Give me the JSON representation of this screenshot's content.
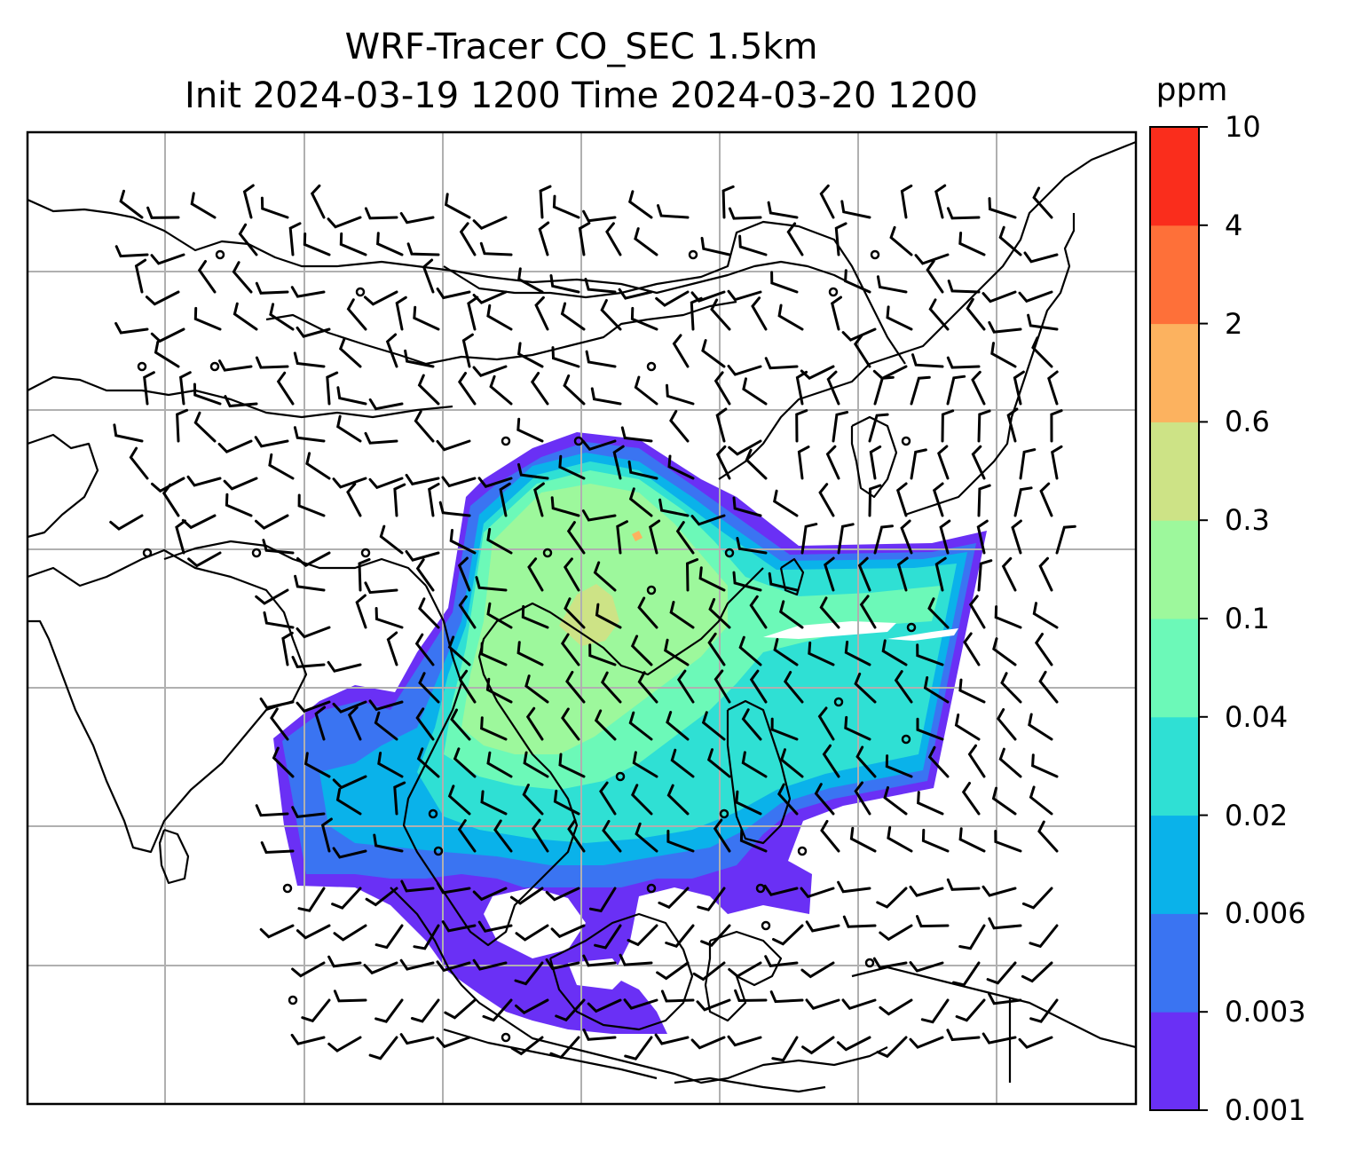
{
  "title": {
    "line1": "WRF-Tracer CO_SEC 1.5km",
    "line2": "Init 2024-03-19 1200 Time 2024-03-20 1200"
  },
  "colorbar": {
    "unit": "ppm",
    "tick_labels": [
      "0.001",
      "0.003",
      "0.006",
      "0.02",
      "0.04",
      "0.1",
      "0.3",
      "0.6",
      "2",
      "4",
      "10"
    ],
    "level_colors": [
      "#6a30f5",
      "#3a74f2",
      "#0ab2ea",
      "#2fe0d4",
      "#6cf9b8",
      "#9df89c",
      "#cde386",
      "#fcb25f",
      "#fe7039",
      "#fa2d1c"
    ]
  },
  "map": {
    "gridlines": "on",
    "wind_barbs": "black",
    "calm_marker": "circle"
  }
}
